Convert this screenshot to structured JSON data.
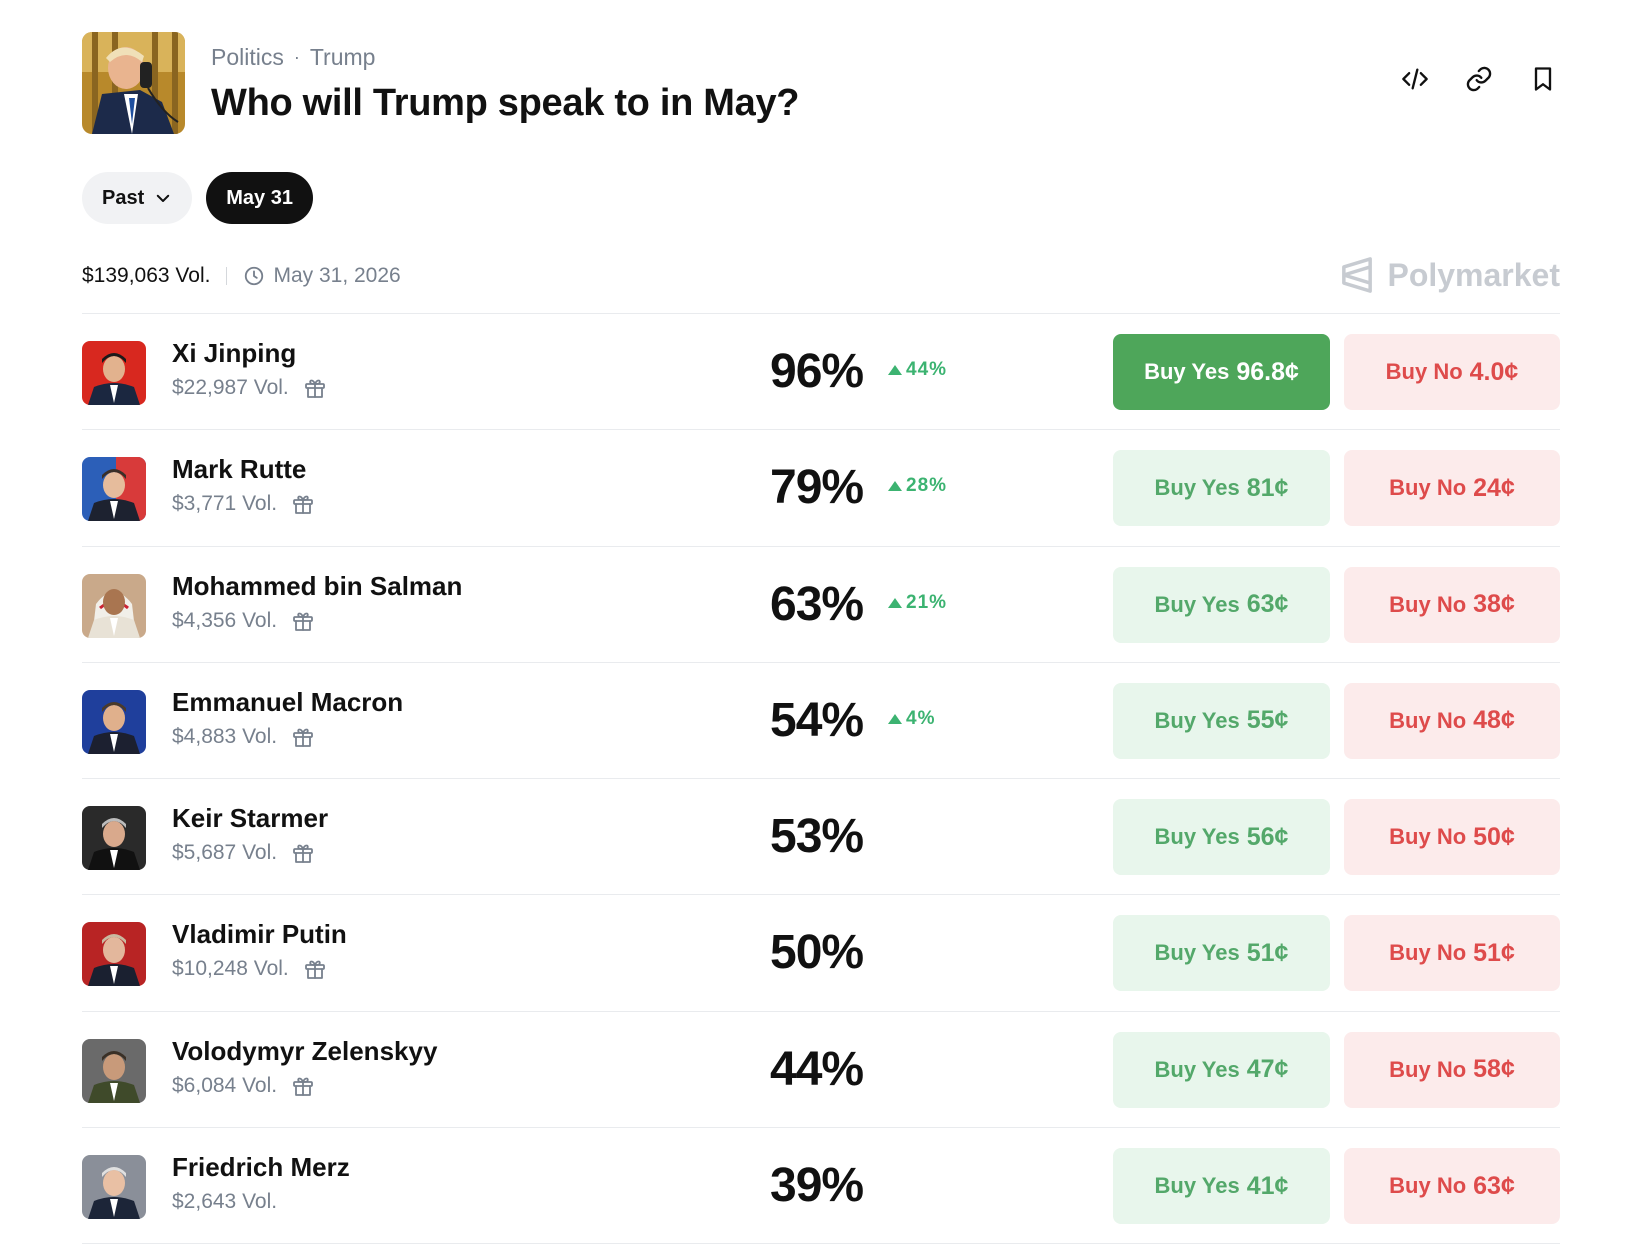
{
  "header": {
    "breadcrumb": [
      "Politics",
      "Trump"
    ],
    "separator": "·",
    "title": "Who will Trump speak to in May?",
    "actions": [
      {
        "name": "embed-code-icon"
      },
      {
        "name": "link-icon"
      },
      {
        "name": "bookmark-icon"
      }
    ]
  },
  "filters": {
    "past_label": "Past",
    "active_label": "May 31"
  },
  "meta": {
    "volume": "$139,063 Vol.",
    "end_date": "May 31, 2026"
  },
  "brand": {
    "name": "Polymarket"
  },
  "colors": {
    "yes_green": "#4ea65a",
    "yes_light": "#e8f6ec",
    "no_red": "#de4b4b",
    "no_light": "#fcebeb",
    "up_green": "#3cb371"
  },
  "outcomes": [
    {
      "name": "Xi Jinping",
      "volume": "$22,987 Vol.",
      "gift": true,
      "percent": "96%",
      "change": "44%",
      "yes_label": "Buy Yes",
      "yes_price": "96.8¢",
      "no_label": "Buy No",
      "no_price": "4.0¢",
      "selected": true
    },
    {
      "name": "Mark Rutte",
      "volume": "$3,771 Vol.",
      "gift": true,
      "percent": "79%",
      "change": "28%",
      "yes_label": "Buy Yes",
      "yes_price": "81¢",
      "no_label": "Buy No",
      "no_price": "24¢",
      "selected": false
    },
    {
      "name": "Mohammed bin Salman",
      "volume": "$4,356 Vol.",
      "gift": true,
      "percent": "63%",
      "change": "21%",
      "yes_label": "Buy Yes",
      "yes_price": "63¢",
      "no_label": "Buy No",
      "no_price": "38¢",
      "selected": false
    },
    {
      "name": "Emmanuel Macron",
      "volume": "$4,883 Vol.",
      "gift": true,
      "percent": "54%",
      "change": "4%",
      "yes_label": "Buy Yes",
      "yes_price": "55¢",
      "no_label": "Buy No",
      "no_price": "48¢",
      "selected": false
    },
    {
      "name": "Keir Starmer",
      "volume": "$5,687 Vol.",
      "gift": true,
      "percent": "53%",
      "change": "",
      "yes_label": "Buy Yes",
      "yes_price": "56¢",
      "no_label": "Buy No",
      "no_price": "50¢",
      "selected": false
    },
    {
      "name": "Vladimir Putin",
      "volume": "$10,248 Vol.",
      "gift": true,
      "percent": "50%",
      "change": "",
      "yes_label": "Buy Yes",
      "yes_price": "51¢",
      "no_label": "Buy No",
      "no_price": "51¢",
      "selected": false
    },
    {
      "name": "Volodymyr Zelenskyy",
      "volume": "$6,084 Vol.",
      "gift": true,
      "percent": "44%",
      "change": "",
      "yes_label": "Buy Yes",
      "yes_price": "47¢",
      "no_label": "Buy No",
      "no_price": "58¢",
      "selected": false
    },
    {
      "name": "Friedrich Merz",
      "volume": "$2,643 Vol.",
      "gift": false,
      "percent": "39%",
      "change": "",
      "yes_label": "Buy Yes",
      "yes_price": "41¢",
      "no_label": "Buy No",
      "no_price": "63¢",
      "selected": false
    }
  ]
}
